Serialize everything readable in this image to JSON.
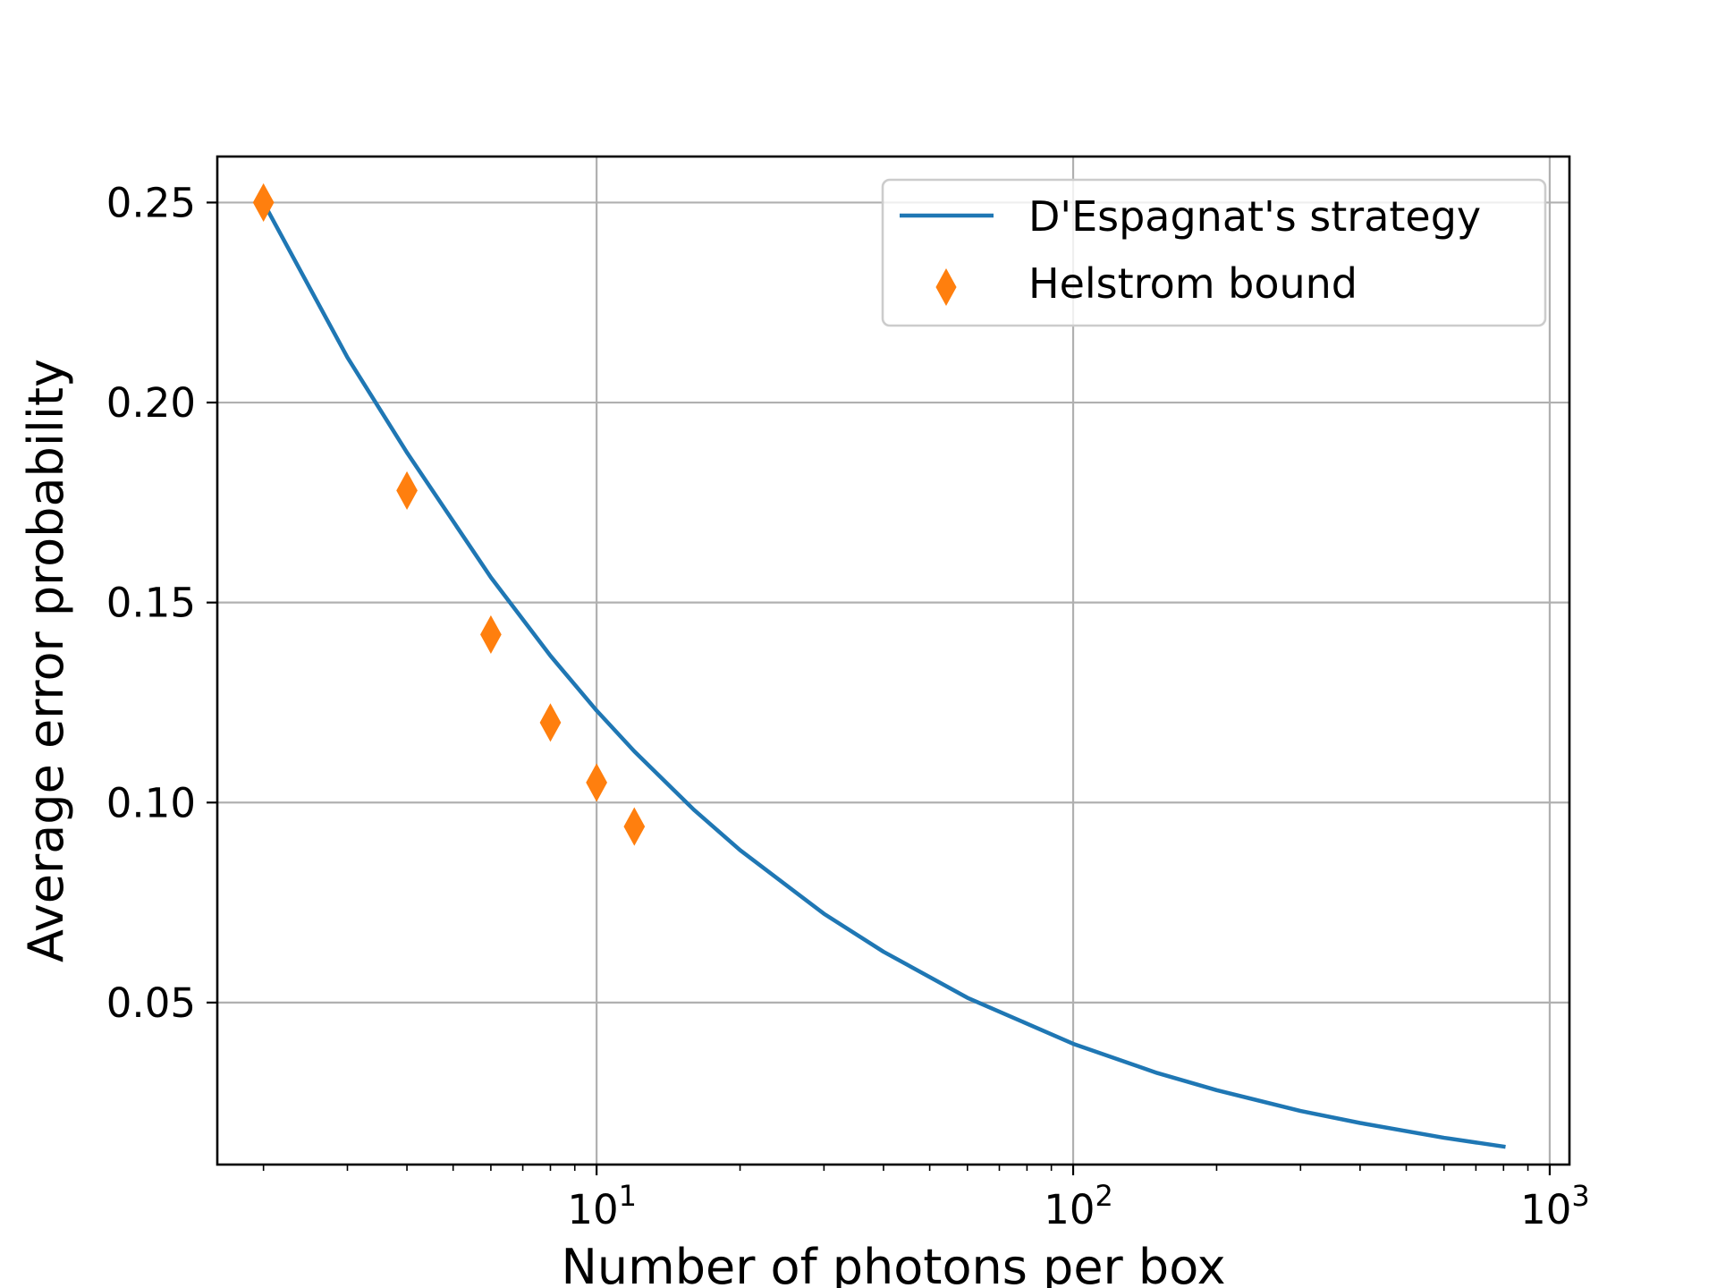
{
  "chart_data": {
    "type": "line",
    "xlabel": "Number of photons per box",
    "ylabel": "Average error probability",
    "xscale": "log",
    "xlim": [
      1.6,
      1100
    ],
    "ylim": [
      0.0095,
      0.2615
    ],
    "grid": true,
    "legend_position": "top-right",
    "x_ticks": [
      {
        "value": 10,
        "base": "10",
        "exp": "1"
      },
      {
        "value": 100,
        "base": "10",
        "exp": "2"
      },
      {
        "value": 1000,
        "base": "10",
        "exp": "3"
      }
    ],
    "y_ticks": [
      {
        "value": 0.05,
        "label": "0.05"
      },
      {
        "value": 0.1,
        "label": "0.10"
      },
      {
        "value": 0.15,
        "label": "0.15"
      },
      {
        "value": 0.2,
        "label": "0.20"
      },
      {
        "value": 0.25,
        "label": "0.25"
      }
    ],
    "series": [
      {
        "name": "D'Espagnat's strategy",
        "kind": "line",
        "color": "#1f77b4",
        "x": [
          2,
          3,
          4,
          6,
          8,
          10,
          12,
          16,
          20,
          30,
          40,
          60,
          100,
          150,
          200,
          300,
          400,
          600,
          800
        ],
        "y": [
          0.25,
          0.2113,
          0.1875,
          0.1563,
          0.1367,
          0.123,
          0.1128,
          0.0982,
          0.0881,
          0.0722,
          0.0627,
          0.0512,
          0.0397,
          0.0324,
          0.0281,
          0.0229,
          0.0199,
          0.0162,
          0.014
        ]
      },
      {
        "name": "Helstrom bound",
        "kind": "scatter",
        "marker": "thin-diamond",
        "color": "#ff7f0e",
        "x": [
          2,
          4,
          6,
          8,
          10,
          12
        ],
        "y": [
          0.25,
          0.178,
          0.142,
          0.12,
          0.105,
          0.094
        ]
      }
    ]
  }
}
